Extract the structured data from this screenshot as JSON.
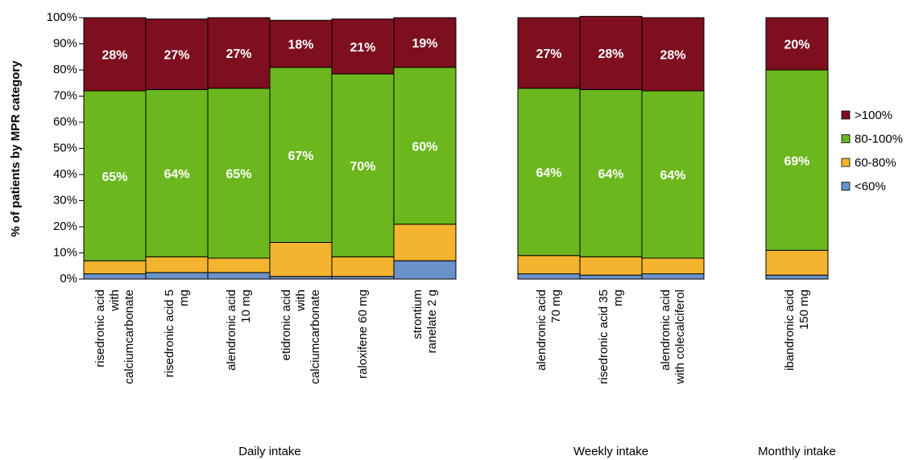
{
  "chart_data": {
    "type": "stacked_bar",
    "y_label": "% of patients by MPR category",
    "categories": [
      "risedronic acid\nwith\ncalciumcarbonate",
      "risedronic acid 5\nmg",
      "alendronic acid\n10 mg",
      "etidronic acid\nwith\ncalciumcarbonate",
      "raloxifene 60 mg",
      "strontium\nranelate 2 g",
      "alendronic acid\n70 mg",
      "risedronic acid 35\nmg",
      "alendronic acid\nwith colecalciferol",
      "ibandronic acid\n150 mg"
    ],
    "groups": [
      {
        "label": "Daily intake",
        "size": 6
      },
      {
        "label": "Weekly intake",
        "size": 3
      },
      {
        "label": "Monthly intake",
        "size": 1
      }
    ],
    "series": [
      {
        "name": "<60%",
        "color": "#6a91c9",
        "values": [
          2,
          2.5,
          2.5,
          1,
          1,
          7,
          2,
          1.5,
          2,
          1.5
        ]
      },
      {
        "name": "60-80%",
        "color": "#f4b42f",
        "values": [
          5,
          6,
          5.5,
          13,
          7.5,
          14,
          7,
          7,
          6,
          9.5
        ]
      },
      {
        "name": "80-100%",
        "color": "#6bb71d",
        "values": [
          65,
          64,
          65,
          67,
          70,
          60,
          64,
          64,
          64,
          69
        ],
        "value_labels": [
          "65%",
          "64%",
          "65%",
          "67%",
          "70%",
          "60%",
          "64%",
          "64%",
          "64%",
          "69%"
        ]
      },
      {
        "name": ">100%",
        "color": "#7e0f1f",
        "values": [
          28,
          27,
          27,
          18,
          21,
          19,
          27,
          28,
          28,
          20
        ],
        "value_labels": [
          "28%",
          "27%",
          "27%",
          "18%",
          "21%",
          "19%",
          "27%",
          "28%",
          "28%",
          "20%"
        ]
      }
    ],
    "ylim": [
      0,
      100
    ],
    "yticks": [
      {
        "value": 0,
        "label": "0%"
      },
      {
        "value": 10,
        "label": "10%"
      },
      {
        "value": 20,
        "label": "20%"
      },
      {
        "value": 30,
        "label": "30%"
      },
      {
        "value": 40,
        "label": "40%"
      },
      {
        "value": 50,
        "label": "50%"
      },
      {
        "value": 60,
        "label": "60%"
      },
      {
        "value": 70,
        "label": "70%"
      },
      {
        "value": 80,
        "label": "80%"
      },
      {
        "value": 90,
        "label": "90%"
      },
      {
        "value": 100,
        "label": "100%"
      }
    ],
    "legend": "right"
  }
}
